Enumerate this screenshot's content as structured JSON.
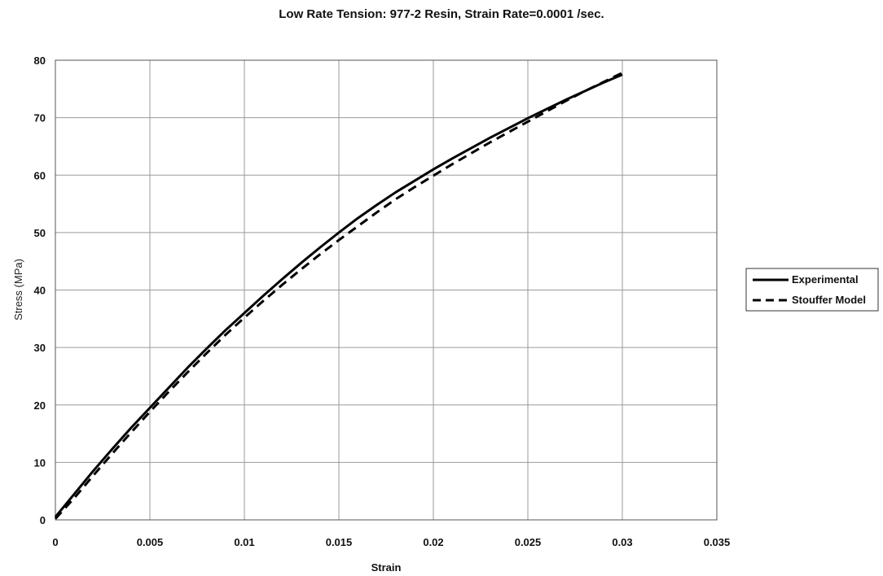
{
  "chart_data": {
    "type": "line",
    "title": "Low Rate Tension: 977-2 Resin, Strain Rate=0.0001 /sec.",
    "xlabel": "Strain",
    "ylabel": "Stress (MPa)",
    "xlim": [
      0,
      0.035
    ],
    "ylim": [
      0,
      80
    ],
    "xticks": [
      "0",
      "0.005",
      "0.01",
      "0.015",
      "0.02",
      "0.025",
      "0.03",
      "0.035"
    ],
    "yticks": [
      "0",
      "10",
      "20",
      "30",
      "40",
      "50",
      "60",
      "70",
      "80"
    ],
    "xtick_values": [
      0,
      0.005,
      0.01,
      0.015,
      0.02,
      0.025,
      0.03,
      0.035
    ],
    "ytick_values": [
      0,
      10,
      20,
      30,
      40,
      50,
      60,
      70,
      80
    ],
    "grid": true,
    "legend_position": "right",
    "series": [
      {
        "name": "Experimental",
        "style": "solid",
        "color": "#000000",
        "x": [
          0,
          0.001,
          0.002,
          0.003,
          0.004,
          0.005,
          0.006,
          0.007,
          0.008,
          0.009,
          0.01,
          0.011,
          0.012,
          0.013,
          0.014,
          0.015,
          0.016,
          0.017,
          0.018,
          0.019,
          0.02,
          0.021,
          0.022,
          0.023,
          0.024,
          0.025,
          0.026,
          0.027,
          0.028,
          0.029,
          0.03
        ],
        "y": [
          0.5,
          4.5,
          8.5,
          12.3,
          16.0,
          19.5,
          23.0,
          26.5,
          29.8,
          33.0,
          36.0,
          39.0,
          41.9,
          44.7,
          47.4,
          50.0,
          52.5,
          54.8,
          57.0,
          59.0,
          61.0,
          62.9,
          64.7,
          66.5,
          68.2,
          69.9,
          71.5,
          73.1,
          74.6,
          76.1,
          77.5
        ]
      },
      {
        "name": "Stouffer Model",
        "style": "dashed",
        "color": "#000000",
        "x": [
          0,
          0.001,
          0.002,
          0.003,
          0.004,
          0.005,
          0.006,
          0.007,
          0.008,
          0.009,
          0.01,
          0.011,
          0.012,
          0.013,
          0.014,
          0.015,
          0.016,
          0.017,
          0.018,
          0.019,
          0.02,
          0.021,
          0.022,
          0.023,
          0.024,
          0.025,
          0.026,
          0.027,
          0.028,
          0.029,
          0.03
        ],
        "y": [
          0.2,
          3.8,
          7.7,
          11.5,
          15.2,
          18.8,
          22.3,
          25.7,
          29.0,
          32.2,
          35.2,
          38.1,
          40.9,
          43.6,
          46.2,
          48.7,
          51.1,
          53.5,
          55.8,
          57.9,
          59.9,
          61.9,
          63.8,
          65.7,
          67.5,
          69.3,
          71.1,
          72.9,
          74.6,
          76.2,
          77.8
        ]
      }
    ]
  }
}
